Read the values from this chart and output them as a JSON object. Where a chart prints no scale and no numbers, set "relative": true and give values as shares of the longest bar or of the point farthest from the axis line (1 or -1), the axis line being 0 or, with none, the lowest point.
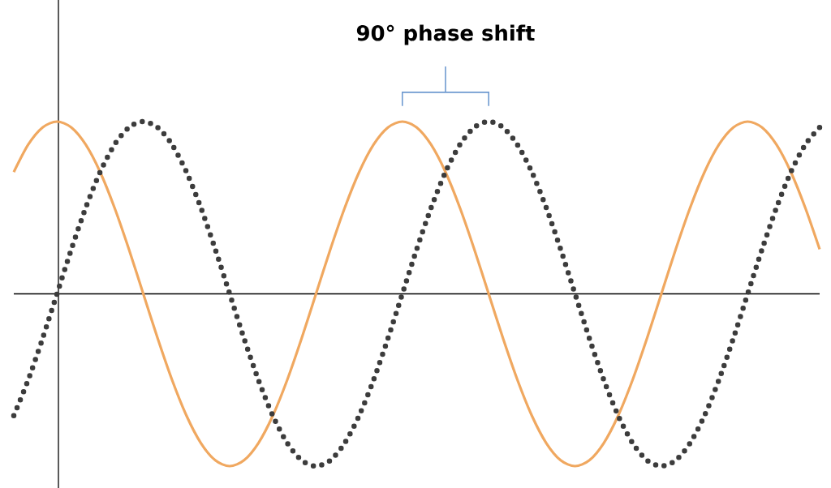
{
  "chart_data": {
    "type": "line",
    "relative": true,
    "annotations": [
      "90° phase shift"
    ],
    "categories": [
      null,
      null,
      null,
      null,
      null,
      null,
      null,
      null,
      null,
      null,
      null,
      null,
      null,
      null,
      null,
      null,
      null,
      null,
      null,
      null,
      null,
      null,
      null,
      null,
      null,
      null,
      null,
      null,
      null,
      null,
      null,
      null,
      null,
      null,
      null,
      null,
      null,
      null,
      null,
      null,
      null,
      null,
      null,
      null,
      null,
      null,
      null,
      null,
      null,
      null,
      null,
      null,
      null,
      null,
      null,
      null,
      null
    ],
    "series": [
      {
        "color": "#f0a860",
        "line_style": "solid",
        "values": [
          0.707,
          0.866,
          0.966,
          1,
          0.966,
          0.866,
          0.707,
          0.5,
          0.259,
          0,
          -0.259,
          -0.5,
          -0.707,
          -0.866,
          -0.966,
          -1,
          -0.966,
          -0.866,
          -0.707,
          -0.5,
          -0.259,
          0,
          0.259,
          0.5,
          0.707,
          0.866,
          0.966,
          1,
          0.966,
          0.866,
          0.707,
          0.5,
          0.259,
          0,
          -0.259,
          -0.5,
          -0.707,
          -0.866,
          -0.966,
          -1,
          -0.966,
          -0.866,
          -0.707,
          -0.5,
          -0.259,
          0,
          0.259,
          0.5,
          0.707,
          0.866,
          0.966,
          1,
          0.966,
          0.866,
          0.707,
          0.5,
          0.259
        ]
      },
      {
        "color": "#3c3c3c",
        "line_style": "dotted",
        "values": [
          -0.707,
          -0.5,
          -0.259,
          0,
          0.259,
          0.5,
          0.707,
          0.866,
          0.966,
          1,
          0.966,
          0.866,
          0.707,
          0.5,
          0.259,
          0,
          -0.259,
          -0.5,
          -0.707,
          -0.866,
          -0.966,
          -1,
          -0.966,
          -0.866,
          -0.707,
          -0.5,
          -0.259,
          0,
          0.259,
          0.5,
          0.707,
          0.866,
          0.966,
          1,
          0.966,
          0.866,
          0.707,
          0.5,
          0.259,
          0,
          -0.259,
          -0.5,
          -0.707,
          -0.866,
          -0.966,
          -1,
          -0.966,
          -0.866,
          -0.707,
          -0.5,
          -0.259,
          0,
          0.259,
          0.5,
          0.707,
          0.866,
          0.966
        ]
      }
    ]
  }
}
